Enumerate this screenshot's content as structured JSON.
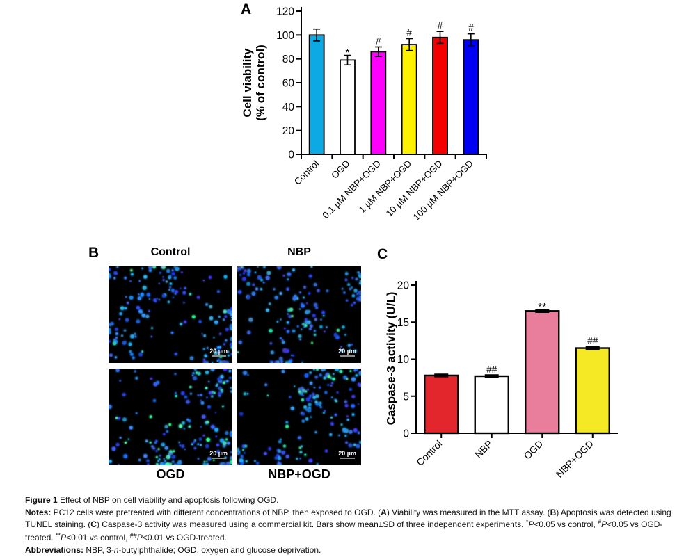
{
  "panels": {
    "a": {
      "label": "A"
    },
    "b": {
      "label": "B"
    },
    "c": {
      "label": "C"
    }
  },
  "chart_data": [
    {
      "panel": "A",
      "type": "bar",
      "title": "",
      "ylabel": "Cell viability (% of control)",
      "ylabel_lines": [
        "Cell viability",
        "(% of control)"
      ],
      "xlabel": "",
      "categories": [
        "Control",
        "OGD",
        "0.1 µM NBP+OGD",
        "1 µM NBP+OGD",
        "10 µM NBP+OGD",
        "100 µM NBP+OGD"
      ],
      "values": [
        100,
        79,
        86,
        92,
        98,
        96
      ],
      "errors": [
        5,
        4,
        4,
        5,
        5,
        5
      ],
      "sig_markers": [
        "",
        "*",
        "#",
        "#",
        "#",
        "#"
      ],
      "bar_colors": [
        "#0DA9E5",
        "#FFFFFF",
        "#FF00FF",
        "#FFF200",
        "#F50000",
        "#0000F2"
      ],
      "ylim": [
        0,
        120
      ],
      "yticks": [
        0,
        20,
        40,
        60,
        80,
        100,
        120
      ],
      "grid": false,
      "legend": "none"
    },
    {
      "panel": "C",
      "type": "bar",
      "title": "",
      "ylabel": "Caspase-3 activity (U/L)",
      "ylabel_lines": [
        "Caspase-3 activity (U/L)"
      ],
      "xlabel": "",
      "categories": [
        "Control",
        "NBP",
        "OGD",
        "NBP+OGD"
      ],
      "values": [
        7.8,
        7.7,
        16.5,
        11.5
      ],
      "errors": [
        0.15,
        0.15,
        0.15,
        0.15
      ],
      "sig_markers": [
        "",
        "##",
        "**",
        "##"
      ],
      "bar_colors": [
        "#E3262B",
        "#FFFFFF",
        "#E87E9C",
        "#F5E926"
      ],
      "ylim": [
        0,
        20
      ],
      "yticks": [
        0,
        5,
        10,
        15,
        20
      ],
      "grid": false,
      "legend": "none"
    }
  ],
  "panel_b": {
    "col_titles": [
      "Control",
      "NBP"
    ],
    "row_labels": [
      "OGD",
      "NBP+OGD"
    ],
    "images": [
      {
        "name": "control",
        "scale_label": "20 µm",
        "blue_cells": 170,
        "green_cells": 9
      },
      {
        "name": "nbp",
        "scale_label": "20 µm",
        "blue_cells": 160,
        "green_cells": 8
      },
      {
        "name": "ogd",
        "scale_label": "20 µm",
        "blue_cells": 150,
        "green_cells": 32
      },
      {
        "name": "nbp-ogd",
        "scale_label": "20 µm",
        "blue_cells": 150,
        "green_cells": 16
      }
    ]
  },
  "caption": {
    "paragraphs": [
      {
        "name": "figure-title",
        "segments": [
          {
            "t": "Figure 1",
            "b": 1
          },
          {
            "t": " Effect of NBP on cell viability and apoptosis following OGD."
          }
        ]
      },
      {
        "name": "notes",
        "segments": [
          {
            "t": "Notes:",
            "b": 1
          },
          {
            "t": " PC12 cells were pretreated with different concentrations of NBP, then exposed to OGD. ("
          },
          {
            "t": "A",
            "b": 1
          },
          {
            "t": ") Viability was measured in the MTT assay. ("
          },
          {
            "t": "B",
            "b": 1
          },
          {
            "t": ") Apoptosis was detected using TUNEL staining. ("
          },
          {
            "t": "C",
            "b": 1
          },
          {
            "t": ") Caspase-3 activity was measured using a commercial kit. Bars show mean±SD of three independent experiments. "
          },
          {
            "t": "*",
            "sup": 1
          },
          {
            "t": "P",
            "i": 1
          },
          {
            "t": "<0.05 vs control, "
          },
          {
            "t": "#",
            "sup": 1
          },
          {
            "t": "P",
            "i": 1
          },
          {
            "t": "<0.05 vs OGD-treated. "
          },
          {
            "t": "**",
            "sup": 1
          },
          {
            "t": "P",
            "i": 1
          },
          {
            "t": "<0.01 vs control, "
          },
          {
            "t": "##",
            "sup": 1
          },
          {
            "t": "P",
            "i": 1
          },
          {
            "t": "<0.01 vs OGD-treated."
          }
        ]
      },
      {
        "name": "abbreviations",
        "segments": [
          {
            "t": "Abbreviations:",
            "b": 1
          },
          {
            "t": " NBP, 3-"
          },
          {
            "t": "n",
            "i": 1
          },
          {
            "t": "-butylphthalide; OGD, oxygen and glucose deprivation."
          }
        ]
      }
    ]
  }
}
